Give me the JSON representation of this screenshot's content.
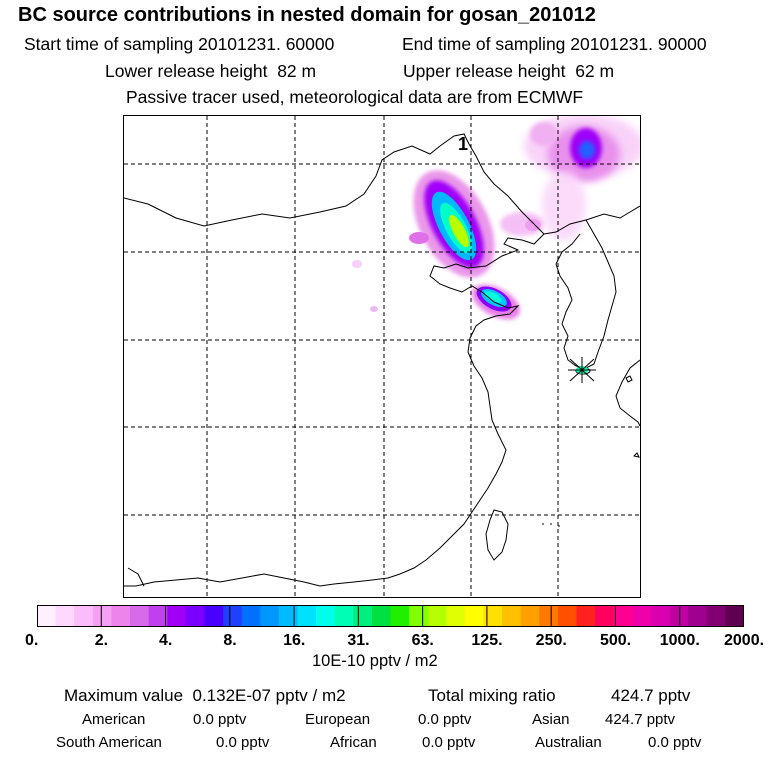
{
  "title": "BC  source contributions in nested domain for gosan_201012",
  "sampling": {
    "start_label": "Start time of sampling",
    "start_value": "20101231. 60000",
    "end_label": "End time of sampling",
    "end_value": "20101231. 90000"
  },
  "release": {
    "lower_label": "Lower release height",
    "lower_value": "82 m",
    "upper_label": "Upper release height",
    "upper_value": "62 m"
  },
  "note": "Passive tracer used, meteorological data are from ECMWF",
  "map": {
    "label_1": "1"
  },
  "colorbar": {
    "colors": [
      "#fff0ff",
      "#ffd8ff",
      "#fcbcfc",
      "#f5a0f5",
      "#ec84ec",
      "#d66ae8",
      "#c040f0",
      "#a000f8",
      "#7c00ff",
      "#4800ff",
      "#2040ff",
      "#0070ff",
      "#0098ff",
      "#00bcff",
      "#00e0ff",
      "#00ffe8",
      "#00ffb4",
      "#00f080",
      "#00e040",
      "#20f000",
      "#80ff00",
      "#b4ff00",
      "#e0ff00",
      "#ffff00",
      "#ffe000",
      "#ffc000",
      "#ffa000",
      "#ff7800",
      "#ff5000",
      "#ff2020",
      "#ff0060",
      "#ff0090",
      "#f000a8",
      "#d800b0",
      "#c000a0",
      "#a00090",
      "#800070",
      "#600050"
    ],
    "ticks": [
      "0.",
      "2.",
      "4.",
      "8.",
      "16.",
      "31.",
      "63.",
      "125.",
      "250.",
      "500.",
      "1000.",
      "2000."
    ],
    "units": "10E-10 pptv / m2"
  },
  "stats": {
    "max_label": "Maximum value",
    "max_value": "0.132E-07 pptv / m2",
    "total_label": "Total mixing ratio",
    "total_value": "424.7 pptv",
    "regions": [
      {
        "name": "American",
        "value": "0.0 pptv"
      },
      {
        "name": "European",
        "value": "0.0 pptv"
      },
      {
        "name": "Asian",
        "value": "424.7 pptv"
      },
      {
        "name": "South American",
        "value": "0.0 pptv"
      },
      {
        "name": "African",
        "value": "0.0 pptv"
      },
      {
        "name": "Australian",
        "value": "0.0 pptv"
      }
    ]
  }
}
